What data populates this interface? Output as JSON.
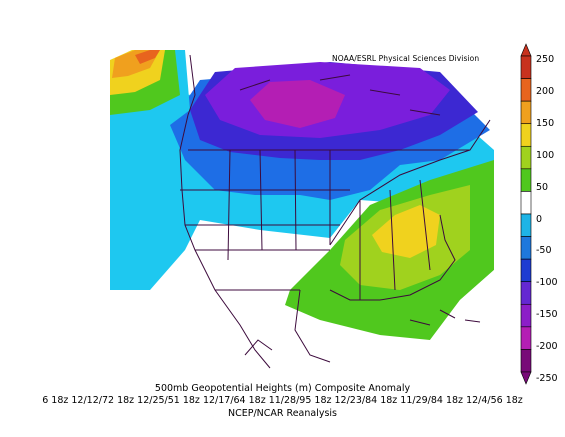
{
  "map": {
    "credit": "NOAA/ESRL Physical Sciences Division",
    "title": "500mb Geopotential Heights (m)   Composite Anomaly",
    "dates": "6 18z 12/12/72 18z 12/25/51 18z 12/17/64 18z 11/28/95 18z 12/23/84 18z 11/29/84 18z 12/4/56 18z",
    "source": "NCEP/NCAR Reanalysis"
  },
  "colorbar": {
    "labels": [
      "250",
      "200",
      "150",
      "100",
      "50",
      "0",
      "-50",
      "-100",
      "-150",
      "-200",
      "-250"
    ],
    "colors": [
      "#c8321e",
      "#e8641e",
      "#f0a01e",
      "#f0d21e",
      "#a0d21e",
      "#50c81e",
      "#ffffff",
      "#1eb4e6",
      "#1e78dc",
      "#1e3cd2",
      "#6428d2",
      "#8c1ec8",
      "#b41eb4",
      "#780a78"
    ]
  }
}
